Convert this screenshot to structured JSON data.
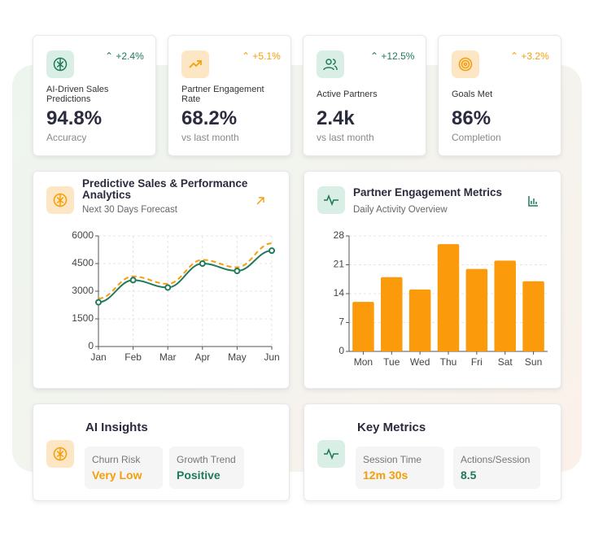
{
  "kpis": [
    {
      "change": "+2.4%",
      "label": "AI-Driven Sales Predictions",
      "value": "94.8%",
      "sub": "Accuracy"
    },
    {
      "change": "+5.1%",
      "label": "Partner Engagement Rate",
      "value": "68.2%",
      "sub": "vs last month"
    },
    {
      "change": "+12.5%",
      "label": "Active Partners",
      "value": "2.4k",
      "sub": "vs last month"
    },
    {
      "change": "+3.2%",
      "label": "Goals Met",
      "value": "86%",
      "sub": "Completion"
    }
  ],
  "chart_data": [
    {
      "type": "line",
      "title": "Predictive Sales & Performance Analytics",
      "subtitle": "Next 30 Days Forecast",
      "categories": [
        "Jan",
        "Feb",
        "Mar",
        "Apr",
        "May",
        "Jun"
      ],
      "series": [
        {
          "color": "#f59e0b",
          "line_style": "dashed",
          "values": [
            2600,
            3800,
            3400,
            4700,
            4300,
            5600
          ]
        },
        {
          "color": "#1f7a5a",
          "line_style": "solid",
          "markers": true,
          "values": [
            2400,
            3600,
            3200,
            4500,
            4100,
            5200
          ]
        }
      ],
      "ylim": [
        0,
        6000
      ],
      "yticks": [
        0,
        1500,
        3000,
        4500,
        6000
      ],
      "grid": true
    },
    {
      "type": "bar",
      "title": "Partner Engagement Metrics",
      "subtitle": "Daily Activity Overview",
      "categories": [
        "Mon",
        "Tue",
        "Wed",
        "Thu",
        "Fri",
        "Sat",
        "Sun"
      ],
      "values": [
        12,
        18,
        15,
        26,
        20,
        22,
        17
      ],
      "color": "#fb9a0a",
      "ylim": [
        0,
        28
      ],
      "yticks": [
        0,
        7,
        14,
        21,
        28
      ],
      "grid": true
    }
  ],
  "insights": {
    "title": "AI Insights",
    "items": [
      {
        "label": "Churn Risk",
        "value": "Very Low"
      },
      {
        "label": "Growth Trend",
        "value": "Positive"
      }
    ]
  },
  "key_metrics": {
    "title": "Key Metrics",
    "items": [
      {
        "label": "Session Time",
        "value": "12m 30s"
      },
      {
        "label": "Actions/Session",
        "value": "8.5"
      }
    ]
  }
}
